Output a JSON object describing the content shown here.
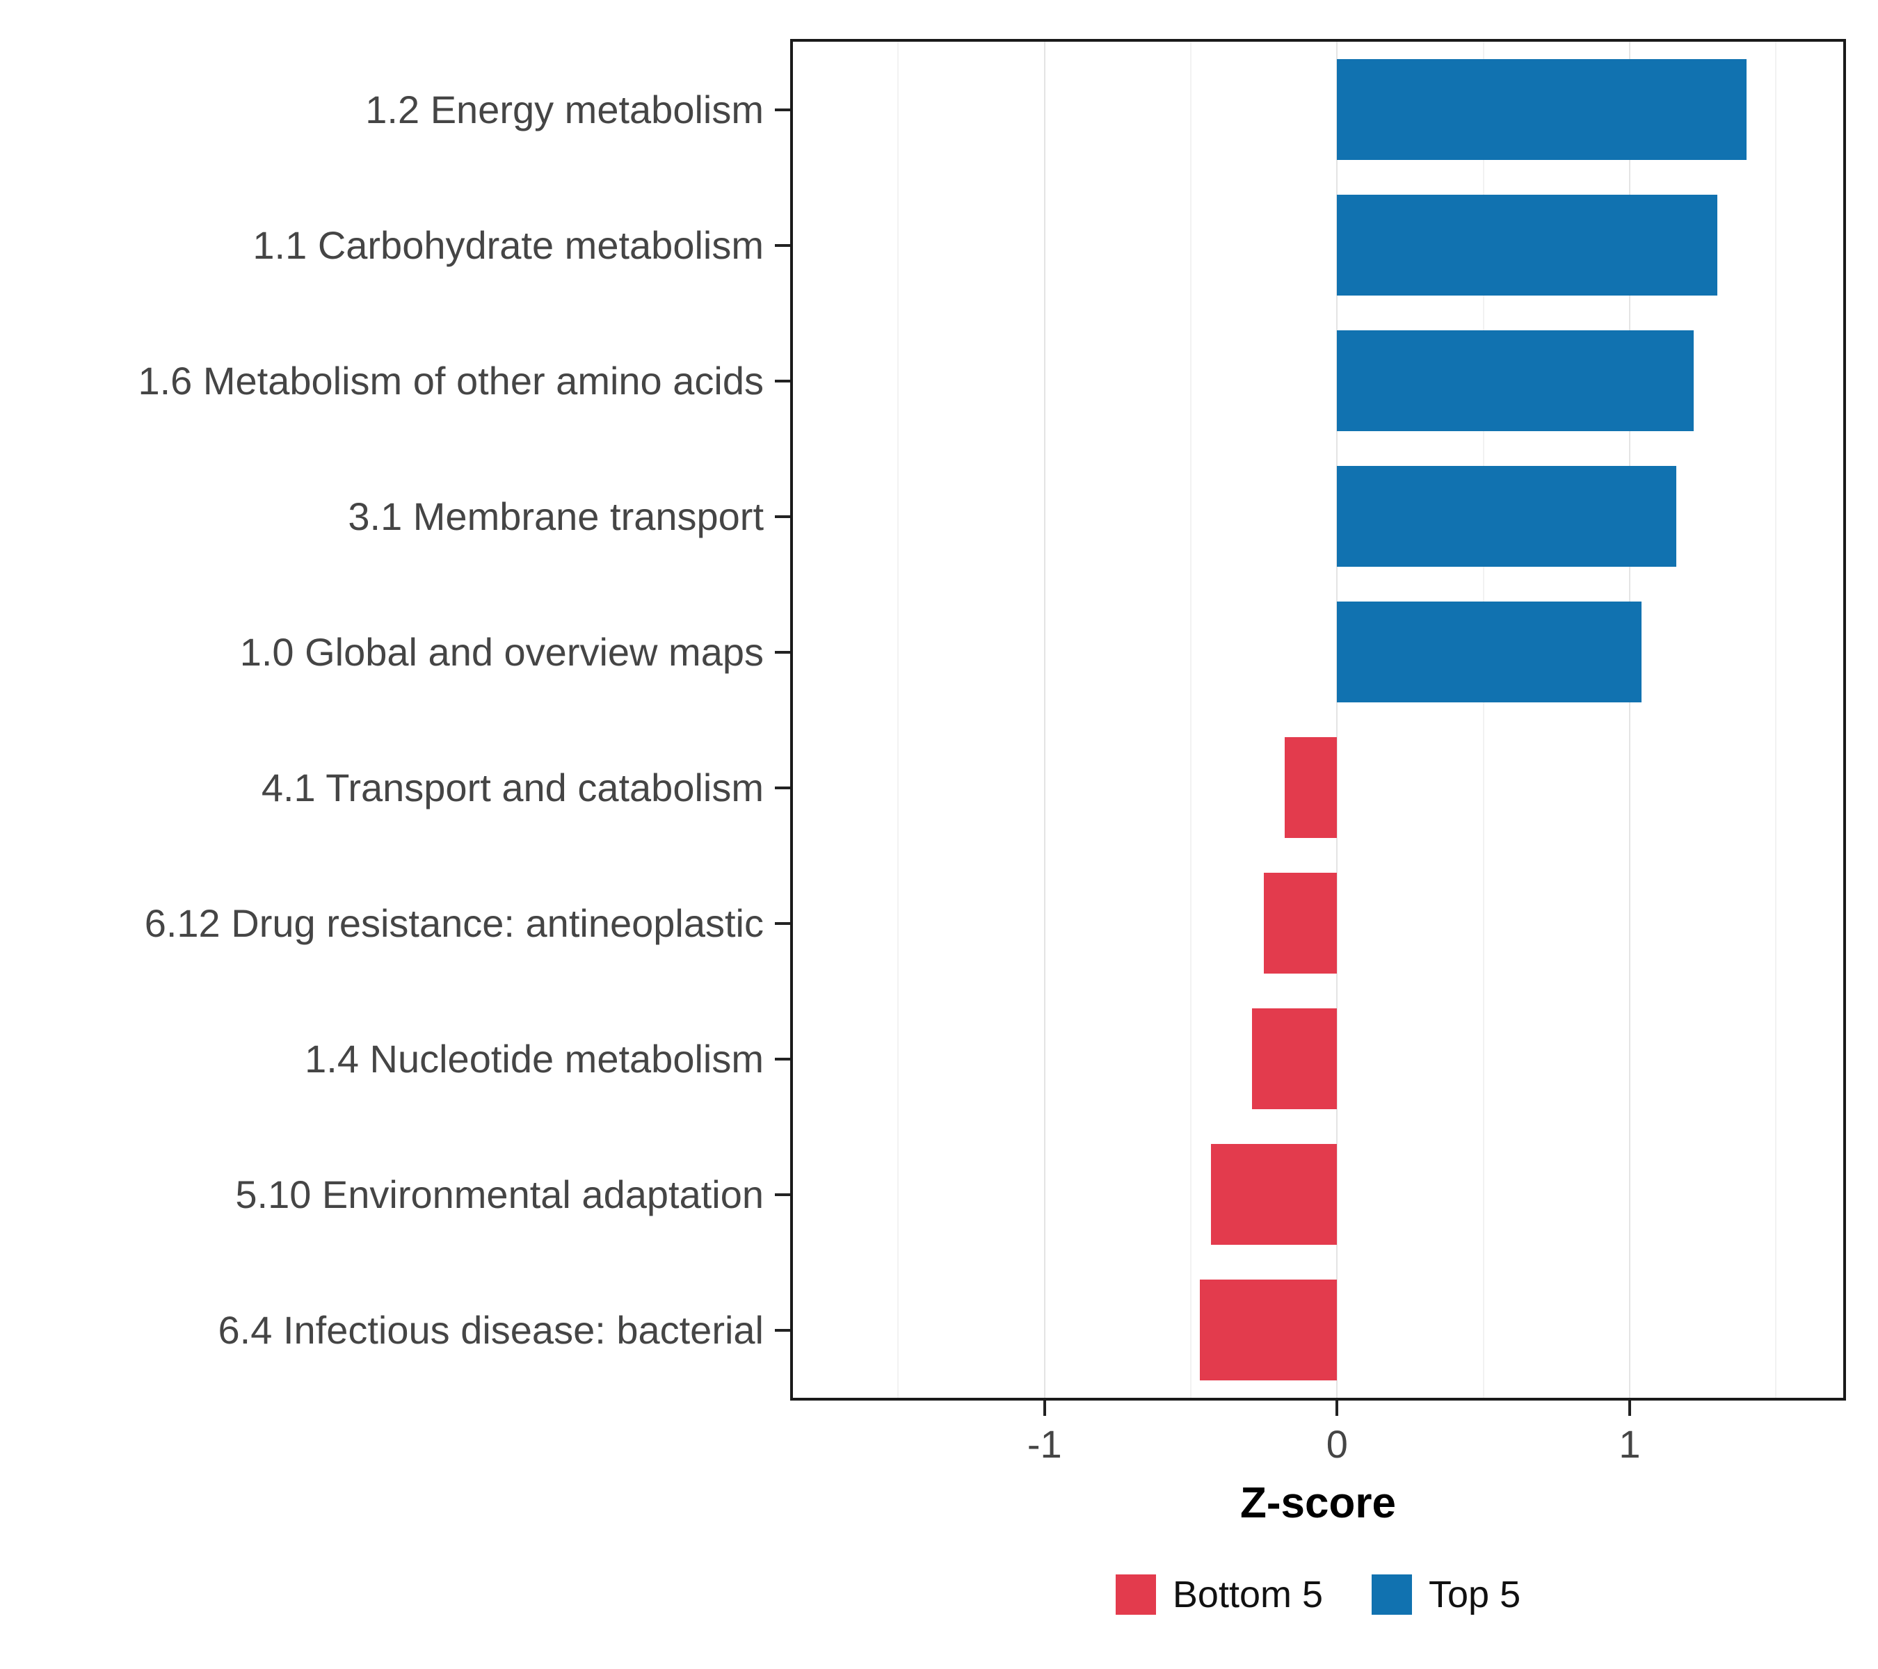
{
  "chart_data": {
    "type": "bar",
    "orientation": "horizontal",
    "title": "",
    "xlabel": "Z-score",
    "ylabel": "",
    "xlim": [
      -1.86,
      1.73
    ],
    "x_ticks": [
      -1,
      0,
      1
    ],
    "x_minor_ticks": [
      -1.5,
      -0.5,
      0.5,
      1.5
    ],
    "grid": true,
    "legend_position": "bottom",
    "categories": [
      "1.2 Energy metabolism",
      "1.1 Carbohydrate metabolism",
      "1.6 Metabolism of other amino acids",
      "3.1 Membrane transport",
      "1.0 Global and overview maps",
      "4.1 Transport and catabolism",
      "6.12 Drug resistance: antineoplastic",
      "1.4 Nucleotide metabolism",
      "5.10 Environmental adaptation",
      "6.4 Infectious disease: bacterial"
    ],
    "values": [
      1.4,
      1.3,
      1.22,
      1.16,
      1.04,
      -0.18,
      -0.25,
      -0.29,
      -0.43,
      -0.47
    ],
    "groups": [
      "Top 5",
      "Top 5",
      "Top 5",
      "Top 5",
      "Top 5",
      "Bottom 5",
      "Bottom 5",
      "Bottom 5",
      "Bottom 5",
      "Bottom 5"
    ],
    "series_colors": {
      "Top 5": "#1172B0",
      "Bottom 5": "#E33B4D"
    },
    "legend": [
      {
        "label": "Bottom 5",
        "color": "#E33B4D"
      },
      {
        "label": "Top 5",
        "color": "#1172B0"
      }
    ]
  }
}
